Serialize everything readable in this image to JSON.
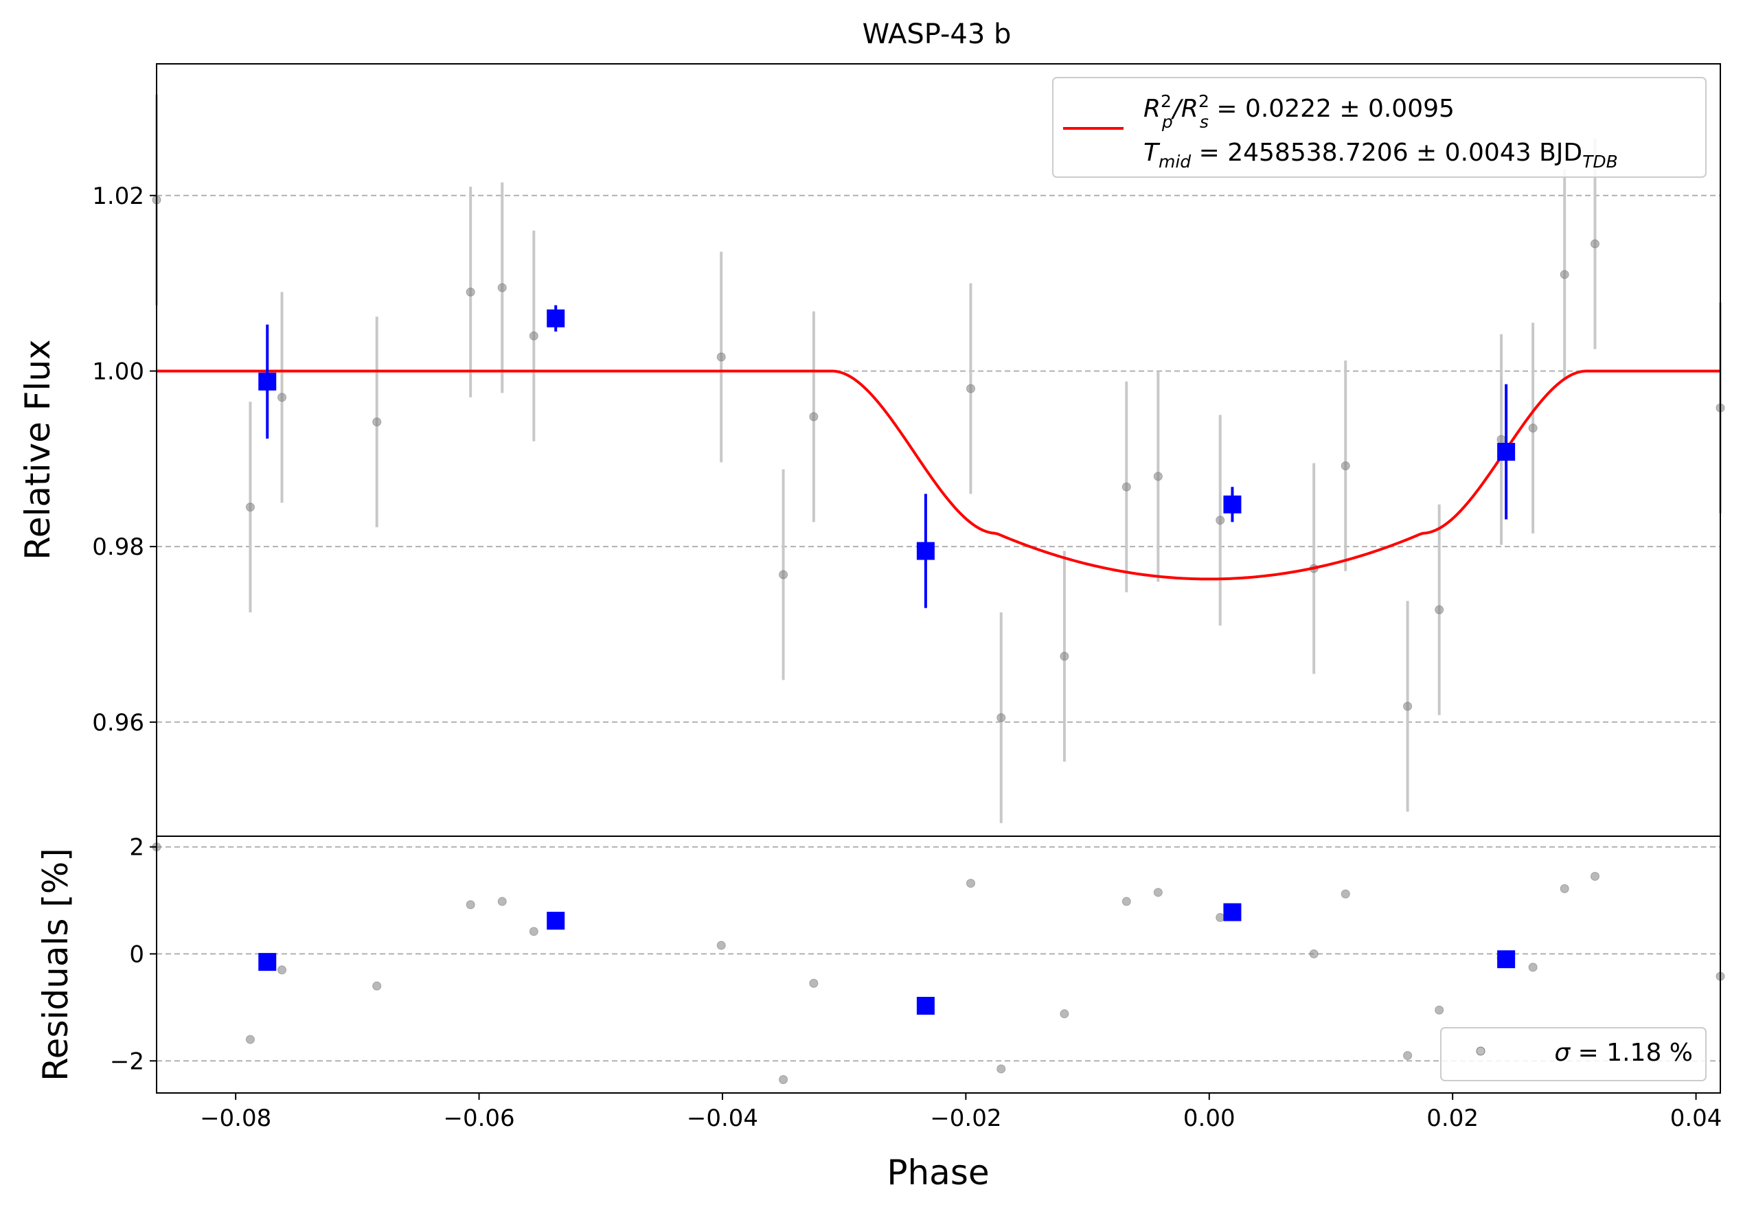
{
  "chart_data": {
    "type": "scatter",
    "title": "WASP-43 b",
    "xlabel": "Phase",
    "top_ylabel": "Relative Flux",
    "bottom_ylabel": "Residuals [%]",
    "xlim": [
      -0.0865,
      0.042
    ],
    "top_ylim": [
      0.947,
      1.035
    ],
    "bottom_ylim": [
      -2.6,
      2.2
    ],
    "xticks": [
      -0.08,
      -0.06,
      -0.04,
      -0.02,
      0.0,
      0.02,
      0.04
    ],
    "xtick_labels": [
      "−0.08",
      "−0.06",
      "−0.04",
      "−0.02",
      "0.00",
      "0.02",
      "0.04"
    ],
    "top_yticks": [
      0.96,
      0.98,
      1.0,
      1.02
    ],
    "top_ytick_labels": [
      "0.96",
      "0.98",
      "1.00",
      "1.02"
    ],
    "bottom_yticks": [
      -2,
      0,
      2
    ],
    "bottom_ytick_labels": [
      "−2",
      "0",
      "2"
    ],
    "grid": "horizontal dashed",
    "legend_top": {
      "placement": "top-right",
      "line1_prefix": "R",
      "line1_sub1": "p",
      "line1_sup1": "2",
      "line1_slash": "/R",
      "line1_sub2": "s",
      "line1_sup2": "2",
      "line1_value": " = 0.0222 ± 0.0095",
      "line2_prefix": "T",
      "line2_sub": "mid",
      "line2_value": " = 2458538.7206 ± 0.0043 BJD",
      "line2_unit_sub": "TDB"
    },
    "legend_bottom": {
      "placement": "bottom-right",
      "sigma_symbol": "σ",
      "sigma_text": " = 1.18 %"
    },
    "model": {
      "name": "transit model",
      "color": "#ff0000",
      "baseline": 1.0,
      "depth": 0.0237,
      "t1": -0.031,
      "t2": -0.0175,
      "t3": 0.0175,
      "t4": 0.031
    },
    "raw_series": {
      "color": "#808080",
      "points": [
        {
          "x": -0.0865,
          "y": 1.0195,
          "err": 0.012,
          "res": 2.0
        },
        {
          "x": -0.0788,
          "y": 0.9845,
          "err": 0.012,
          "res": -1.6
        },
        {
          "x": -0.0762,
          "y": 0.997,
          "err": 0.012,
          "res": -0.3
        },
        {
          "x": -0.0684,
          "y": 0.9942,
          "err": 0.012,
          "res": -0.6
        },
        {
          "x": -0.0607,
          "y": 1.009,
          "err": 0.012,
          "res": 0.92
        },
        {
          "x": -0.0581,
          "y": 1.0095,
          "err": 0.012,
          "res": 0.98
        },
        {
          "x": -0.0555,
          "y": 1.004,
          "err": 0.012,
          "res": 0.42
        },
        {
          "x": -0.0401,
          "y": 1.0016,
          "err": 0.012,
          "res": 0.16
        },
        {
          "x": -0.035,
          "y": 0.9768,
          "err": 0.012,
          "res": -2.35
        },
        {
          "x": -0.0325,
          "y": 0.9948,
          "err": 0.012,
          "res": -0.55
        },
        {
          "x": -0.0196,
          "y": 0.998,
          "err": 0.012,
          "res": 1.32
        },
        {
          "x": -0.0171,
          "y": 0.9605,
          "err": 0.012,
          "res": -2.15
        },
        {
          "x": -0.0119,
          "y": 0.9675,
          "err": 0.012,
          "res": -1.12
        },
        {
          "x": -0.0068,
          "y": 0.9868,
          "err": 0.012,
          "res": 0.98
        },
        {
          "x": -0.0042,
          "y": 0.988,
          "err": 0.012,
          "res": 1.15
        },
        {
          "x": 0.0009,
          "y": 0.983,
          "err": 0.012,
          "res": 0.68
        },
        {
          "x": 0.0086,
          "y": 0.9775,
          "err": 0.012,
          "res": 0.0
        },
        {
          "x": 0.0112,
          "y": 0.9892,
          "err": 0.012,
          "res": 1.12
        },
        {
          "x": 0.0163,
          "y": 0.9618,
          "err": 0.012,
          "res": -1.9
        },
        {
          "x": 0.0189,
          "y": 0.9728,
          "err": 0.012,
          "res": -1.05
        },
        {
          "x": 0.024,
          "y": 0.9922,
          "err": 0.012,
          "res": -0.08
        },
        {
          "x": 0.0266,
          "y": 0.9935,
          "err": 0.012,
          "res": -0.25
        },
        {
          "x": 0.0292,
          "y": 1.011,
          "err": 0.012,
          "res": 1.22
        },
        {
          "x": 0.0317,
          "y": 1.0145,
          "err": 0.012,
          "res": 1.45
        },
        {
          "x": 0.042,
          "y": 0.9958,
          "err": 0.012,
          "res": -0.42
        }
      ]
    },
    "binned_series": {
      "color": "#0000ff",
      "points": [
        {
          "x": -0.0774,
          "y": 0.9988,
          "err": 0.0065,
          "res": -0.15
        },
        {
          "x": -0.0537,
          "y": 1.006,
          "err": 0.0015,
          "res": 0.62
        },
        {
          "x": -0.0233,
          "y": 0.9795,
          "err": 0.0065,
          "res": -0.97
        },
        {
          "x": 0.0019,
          "y": 0.9848,
          "err": 0.002,
          "res": 0.78
        },
        {
          "x": 0.0244,
          "y": 0.9908,
          "err": 0.0077,
          "res": -0.1
        }
      ]
    }
  }
}
